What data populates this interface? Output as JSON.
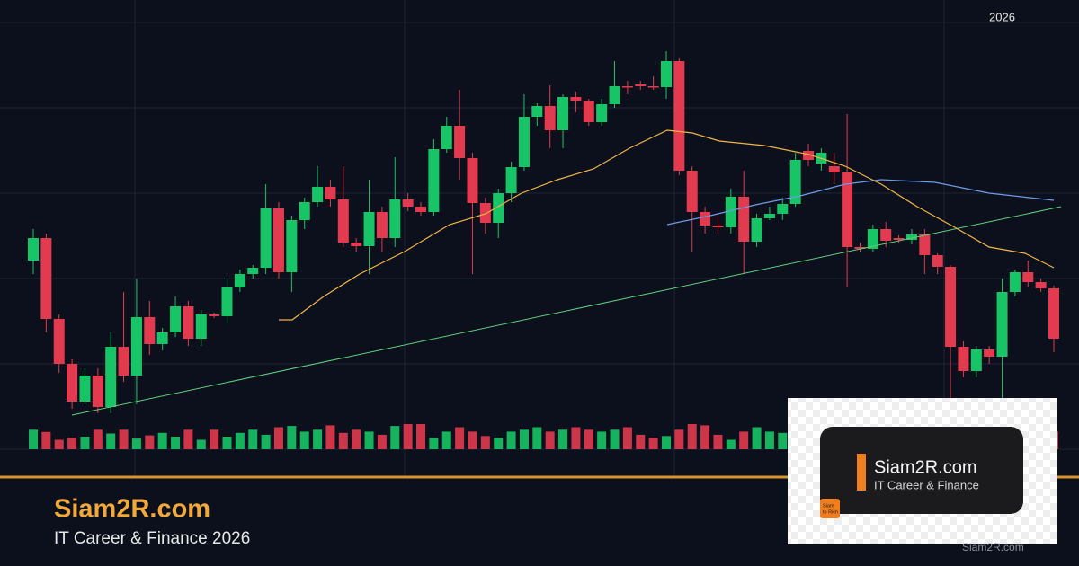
{
  "header": {
    "year": "2026"
  },
  "brand": {
    "title": "Siam2R.com",
    "subtitle": "IT Career & Finance 2026"
  },
  "logo_card": {
    "title": "Siam2R.com",
    "subtitle": "IT Career & Finance",
    "icon_text": [
      "Siam",
      "to Rich"
    ]
  },
  "watermark": "Siam2R.com",
  "chart_data": {
    "type": "candlestick",
    "colors": {
      "up": "#17c466",
      "down": "#e23a4e"
    },
    "ylim": [
      0,
      480
    ],
    "open": [
      210,
      235,
      145,
      95,
      53,
      82,
      47,
      114,
      82,
      147,
      117,
      130,
      159,
      123,
      150,
      148,
      180,
      195,
      202,
      268,
      197,
      255,
      275,
      292,
      278,
      230,
      226,
      264,
      235,
      278,
      270,
      264,
      334,
      360,
      324,
      274,
      252,
      285,
      314,
      370,
      382,
      355,
      392,
      388,
      364,
      384,
      404,
      406,
      404,
      403,
      432,
      310,
      264,
      249,
      247,
      281,
      231,
      257,
      262,
      273,
      332,
      318,
      315,
      308,
      225,
      223,
      245,
      235,
      233,
      239,
      216,
      203,
      114,
      87,
      111,
      103,
      175,
      197,
      186,
      179
    ],
    "close": [
      235,
      145,
      95,
      53,
      82,
      47,
      114,
      82,
      147,
      117,
      130,
      159,
      123,
      150,
      148,
      180,
      195,
      202,
      268,
      197,
      255,
      275,
      292,
      278,
      230,
      226,
      264,
      235,
      278,
      270,
      264,
      334,
      360,
      324,
      274,
      252,
      285,
      314,
      370,
      382,
      355,
      392,
      388,
      364,
      384,
      404,
      403,
      404,
      403,
      432,
      310,
      264,
      249,
      247,
      281,
      231,
      257,
      262,
      273,
      322,
      322,
      330,
      308,
      225,
      223,
      245,
      232,
      233,
      239,
      216,
      203,
      114,
      87,
      111,
      103,
      175,
      197,
      186,
      179,
      123
    ],
    "high": [
      245,
      240,
      150,
      100,
      90,
      90,
      130,
      175,
      190,
      165,
      135,
      170,
      165,
      155,
      152,
      190,
      200,
      205,
      295,
      275,
      260,
      280,
      315,
      300,
      315,
      235,
      300,
      270,
      325,
      285,
      275,
      345,
      370,
      400,
      330,
      280,
      290,
      320,
      395,
      385,
      405,
      395,
      398,
      390,
      390,
      432,
      410,
      410,
      415,
      443,
      435,
      315,
      270,
      260,
      290,
      310,
      262,
      270,
      280,
      330,
      340,
      335,
      330,
      373,
      230,
      250,
      253,
      238,
      245,
      245,
      218,
      205,
      120,
      115,
      115,
      190,
      200,
      210,
      190,
      182
    ],
    "low": [
      195,
      130,
      85,
      45,
      50,
      40,
      40,
      75,
      50,
      105,
      110,
      125,
      115,
      115,
      146,
      140,
      175,
      190,
      195,
      190,
      175,
      245,
      270,
      270,
      225,
      220,
      195,
      220,
      225,
      265,
      260,
      260,
      330,
      300,
      195,
      240,
      235,
      275,
      310,
      360,
      335,
      335,
      375,
      360,
      360,
      380,
      395,
      400,
      400,
      390,
      305,
      220,
      240,
      240,
      240,
      195,
      225,
      255,
      255,
      270,
      315,
      310,
      295,
      180,
      220,
      220,
      225,
      230,
      228,
      195,
      195,
      55,
      80,
      80,
      95,
      55,
      170,
      180,
      175,
      108
    ],
    "volume": [
      62,
      55,
      30,
      36,
      40,
      62,
      50,
      62,
      34,
      44,
      52,
      40,
      62,
      30,
      62,
      40,
      52,
      62,
      46,
      70,
      74,
      56,
      62,
      76,
      52,
      62,
      56,
      46,
      74,
      80,
      80,
      36,
      56,
      70,
      56,
      42,
      36,
      56,
      62,
      70,
      56,
      62,
      70,
      62,
      56,
      62,
      70,
      46,
      36,
      42,
      62,
      80,
      76,
      46,
      30,
      56,
      70,
      56,
      52,
      62,
      42,
      50,
      56,
      62,
      46,
      40,
      52,
      36,
      44,
      56,
      62,
      70,
      40,
      56,
      46,
      62,
      52,
      46,
      40,
      56
    ]
  }
}
